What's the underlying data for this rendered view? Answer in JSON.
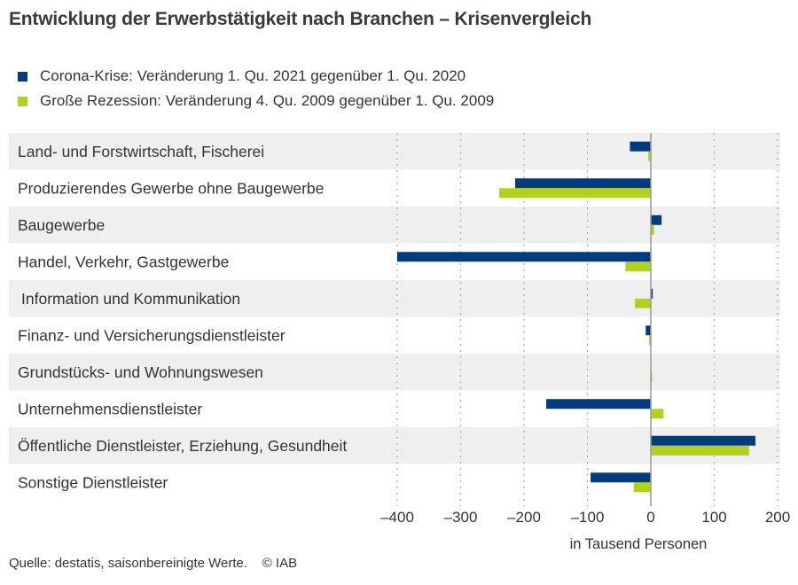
{
  "title": "Entwicklung der Erwerbstätigkeit nach Branchen – Krisenvergleich",
  "colors": {
    "corona": "#003b80",
    "recession": "#b3d01c",
    "band": "#efefef",
    "grid": "#aaaaaa",
    "zero": "#999999"
  },
  "source": "Quelle: destatis, saisonbereinigte Werte.    © IAB",
  "chart_data": {
    "type": "bar",
    "orientation": "horizontal",
    "title": "Entwicklung der Erwerbstätigkeit nach Branchen – Krisenvergleich",
    "xlabel": "in Tausend Personen",
    "ylabel": "",
    "xlim": [
      -400,
      200
    ],
    "xticks": [
      -400,
      -300,
      -200,
      -100,
      0,
      100,
      200
    ],
    "xtick_labels": [
      "–400",
      "–300",
      "–200",
      "–100",
      "0",
      "100",
      "200"
    ],
    "grid": true,
    "legend_position": "top-left",
    "categories": [
      "Land- und Forstwirtschaft, Fischerei",
      "Produzierendes Gewerbe ohne Baugewerbe",
      "Baugewerbe",
      "Handel, Verkehr, Gastgewerbe",
      "Information und Kommunikation",
      "Finanz- und Versicherungsdienstleister",
      "Grundstücks- und Wohnungswesen",
      "Unternehmensdienstleister",
      "Öffentliche Dienstleister, Erziehung, Gesundheit",
      "Sonstige Dienstleister"
    ],
    "series": [
      {
        "name": "Corona-Krise: Veränderung 1. Qu. 2021 gegenüber 1. Qu. 2020",
        "values": [
          -33,
          -214,
          17,
          -400,
          3,
          -8,
          0,
          -165,
          165,
          -95
        ]
      },
      {
        "name": "Große Rezession: Veränderung 4. Qu. 2009 gegenüber 1. Qu. 2009",
        "values": [
          -4,
          -239,
          5,
          -40,
          -25,
          -3,
          1,
          20,
          155,
          -27
        ]
      }
    ]
  }
}
